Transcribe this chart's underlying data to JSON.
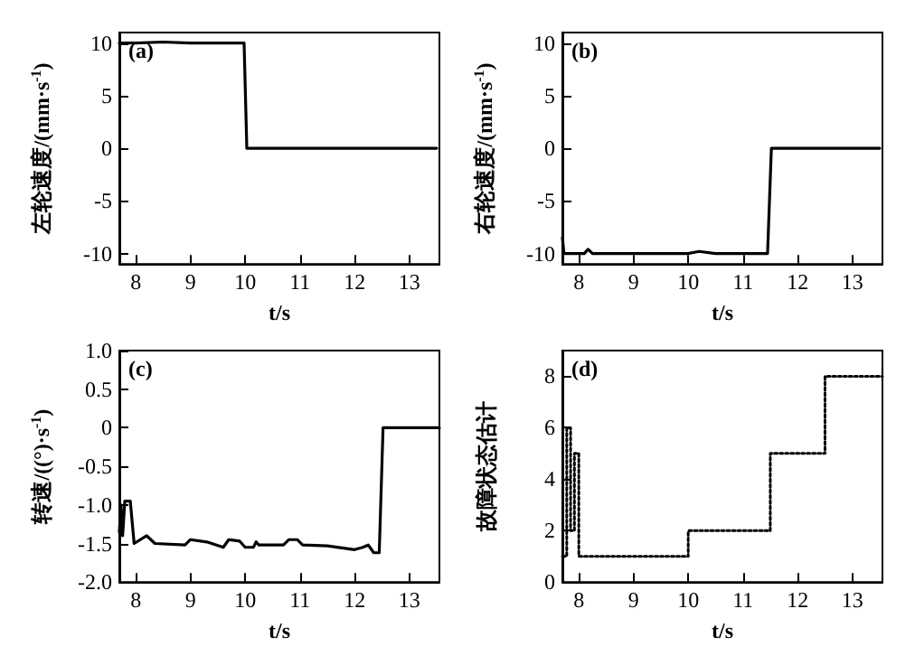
{
  "chart_data": [
    {
      "type": "line",
      "annotations": [
        "(a)"
      ],
      "xlabel": "t/s",
      "ylabel": "左轮速度/(mm·s$^{-1}$)",
      "xlim": [
        7.7,
        13.55
      ],
      "xticks": [
        8,
        9,
        10,
        11,
        12,
        13
      ],
      "ylim": [
        -11,
        11
      ],
      "yticks": [
        -10,
        -5,
        0,
        5,
        10
      ],
      "marker": "none",
      "line_style": "solid",
      "series": [
        {
          "color": "#000000",
          "x": [
            7.7,
            8.0,
            8.5,
            9.0,
            9.5,
            9.98,
            10.03,
            10.5,
            11.0,
            12.0,
            13.5
          ],
          "values": [
            10,
            10,
            10.1,
            10,
            10,
            10,
            0,
            0,
            0,
            0,
            0
          ]
        }
      ]
    },
    {
      "type": "line",
      "annotations": [
        "(b)"
      ],
      "xlabel": "t/s",
      "ylabel": "右轮速度/(mm·s$^{-1}$)",
      "xlim": [
        7.7,
        13.55
      ],
      "xticks": [
        8,
        9,
        10,
        11,
        12,
        13
      ],
      "ylim": [
        -11,
        11
      ],
      "yticks": [
        -10,
        -5,
        0,
        5,
        10
      ],
      "marker": "none",
      "line_style": "solid",
      "series": [
        {
          "color": "#000000",
          "x": [
            7.7,
            7.73,
            8.1,
            8.17,
            8.25,
            9.0,
            9.5,
            10.0,
            10.2,
            10.5,
            11.45,
            11.52,
            12.0,
            13.5
          ],
          "values": [
            -8.5,
            -10,
            -10,
            -9.6,
            -10,
            -10,
            -10,
            -10,
            -9.8,
            -10,
            -10,
            0,
            0,
            0
          ]
        }
      ]
    },
    {
      "type": "line",
      "annotations": [
        "(c)"
      ],
      "xlabel": "t/s",
      "ylabel": "转速/((°)·s$^{-1}$)",
      "xlim": [
        7.7,
        13.55
      ],
      "xticks": [
        8,
        9,
        10,
        11,
        12,
        13
      ],
      "ylim": [
        -2,
        1
      ],
      "yticks": [
        {
          "value": -2,
          "label": "-2.0"
        },
        {
          "value": -1.5,
          "label": "-1.5"
        },
        {
          "value": -1,
          "label": "-1.0"
        },
        {
          "value": -0.5,
          "label": "-0.5"
        },
        0,
        0.5,
        {
          "value": 1,
          "label": "1.0"
        }
      ],
      "marker": "none",
      "line_style": "solid",
      "series": [
        {
          "color": "#000000",
          "x": [
            7.7,
            7.73,
            7.76,
            7.8,
            7.9,
            7.97,
            8.2,
            8.35,
            8.9,
            9.0,
            9.3,
            9.6,
            9.7,
            9.9,
            10.0,
            10.15,
            10.2,
            10.25,
            10.7,
            10.8,
            10.95,
            11.05,
            11.5,
            12.0,
            12.15,
            12.25,
            12.35,
            12.45,
            12.52,
            13.55
          ],
          "values": [
            -1.35,
            -1.0,
            -1.4,
            -0.95,
            -0.95,
            -1.5,
            -1.4,
            -1.5,
            -1.52,
            -1.45,
            -1.48,
            -1.55,
            -1.45,
            -1.47,
            -1.55,
            -1.55,
            -1.48,
            -1.52,
            -1.52,
            -1.45,
            -1.45,
            -1.52,
            -1.53,
            -1.58,
            -1.55,
            -1.52,
            -1.62,
            -1.62,
            0,
            0
          ]
        }
      ]
    },
    {
      "type": "step",
      "annotations": [
        "(d)"
      ],
      "xlabel": "t/s",
      "ylabel": "故障状态估计",
      "xlim": [
        7.7,
        13.55
      ],
      "xticks": [
        8,
        9,
        10,
        11,
        12,
        13
      ],
      "ylim": [
        0,
        9
      ],
      "yticks": [
        0,
        2,
        4,
        6,
        8
      ],
      "marker": "none",
      "line_style": "dotted",
      "series": [
        {
          "color": "#000000",
          "x": [
            7.7,
            7.78,
            7.85,
            7.92,
            8.0,
            10.0,
            11.5,
            12.5,
            13.55
          ],
          "values": [
            1,
            6,
            2,
            5,
            1,
            2,
            5,
            8,
            8
          ]
        }
      ]
    }
  ]
}
